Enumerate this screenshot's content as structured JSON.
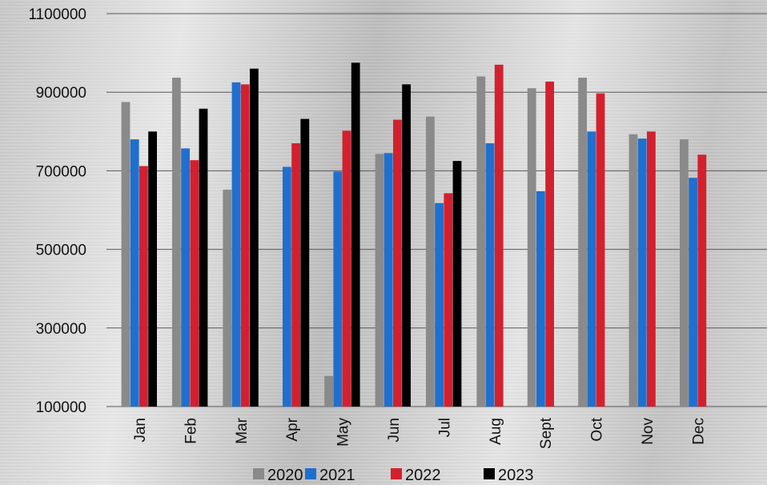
{
  "chart_data": {
    "type": "bar",
    "title": "",
    "xlabel": "",
    "ylabel": "",
    "categories": [
      "Jan",
      "Feb",
      "Mar",
      "Apr",
      "May",
      "Jun",
      "Jul",
      "Aug",
      "Sept",
      "Oct",
      "Nov",
      "Dec"
    ],
    "series": [
      {
        "name": "2020",
        "color": "#8a8a8a",
        "values": [
          875000,
          937000,
          652000,
          100000,
          178000,
          743000,
          838000,
          940000,
          910000,
          937000,
          793000,
          780000
        ]
      },
      {
        "name": "2021",
        "color": "#1f6fcf",
        "values": [
          780000,
          757000,
          925000,
          710000,
          698000,
          745000,
          618000,
          770000,
          648000,
          800000,
          782000,
          682000
        ]
      },
      {
        "name": "2022",
        "color": "#d3202f",
        "values": [
          712000,
          727000,
          920000,
          770000,
          802000,
          830000,
          643000,
          970000,
          927000,
          897000,
          800000,
          741000
        ]
      },
      {
        "name": "2023",
        "color": "#000000",
        "values": [
          800000,
          858000,
          960000,
          832000,
          975000,
          920000,
          725000,
          null,
          null,
          null,
          null,
          null
        ]
      }
    ],
    "ylim": [
      100000,
      1100000
    ],
    "yticks": [
      1100000,
      900000,
      700000,
      500000,
      300000,
      100000
    ],
    "ytick_labels": [
      "1100000",
      "900000",
      "700000",
      "500000",
      "300000",
      "100000"
    ],
    "grid": true,
    "legend": "bottom"
  }
}
